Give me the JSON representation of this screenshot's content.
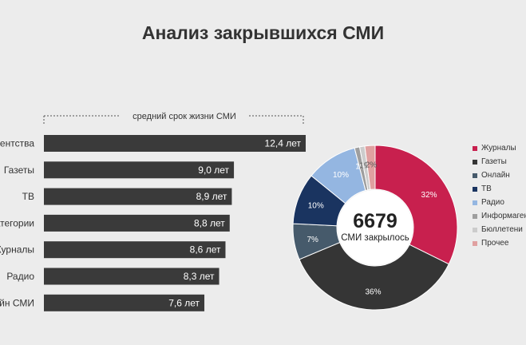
{
  "title": "Анализ закрывшихся СМИ",
  "chart_data": [
    {
      "type": "bar",
      "orientation": "horizontal",
      "subtitle": "средний срок жизни СМИ",
      "categories": [
        "…гентства",
        "Газеты",
        "ТВ",
        "…атегории",
        "Журналы",
        "Радио",
        "…айн СМИ"
      ],
      "values": [
        12.4,
        9.0,
        8.9,
        8.8,
        8.6,
        8.3,
        7.6
      ],
      "value_labels": [
        "12,4 лет",
        "9,0 лет",
        "8,9 лет",
        "8,8 лет",
        "8,6 лет",
        "8,3 лет",
        "7,6 лет"
      ],
      "xlim": [
        0,
        12.4
      ],
      "grid": false,
      "color": "#3a3a3a"
    },
    {
      "type": "pie",
      "donut": true,
      "center_value": "6679",
      "center_label": "СМИ закрылось",
      "legend_position": "right",
      "slices": [
        {
          "name": "Журналы",
          "value": 32,
          "label": "32%",
          "color": "#c8204e"
        },
        {
          "name": "Газеты",
          "value": 36,
          "label": "36%",
          "color": "#353535"
        },
        {
          "name": "Онлайн",
          "value": 7,
          "label": "7%",
          "color": "#465a6b"
        },
        {
          "name": "ТВ",
          "value": 10,
          "label": "10%",
          "color": "#1a3460"
        },
        {
          "name": "Радио",
          "value": 10,
          "label": "10%",
          "color": "#94b6e1"
        },
        {
          "name": "Информаген…",
          "value": 1,
          "label": "1%",
          "color": "#9e9e9e"
        },
        {
          "name": "Бюллетени",
          "value": 1,
          "label": "1%",
          "color": "#cccccc"
        },
        {
          "name": "Прочее",
          "value": 2,
          "label": "2%",
          "color": "#e0a0a0"
        }
      ]
    }
  ]
}
